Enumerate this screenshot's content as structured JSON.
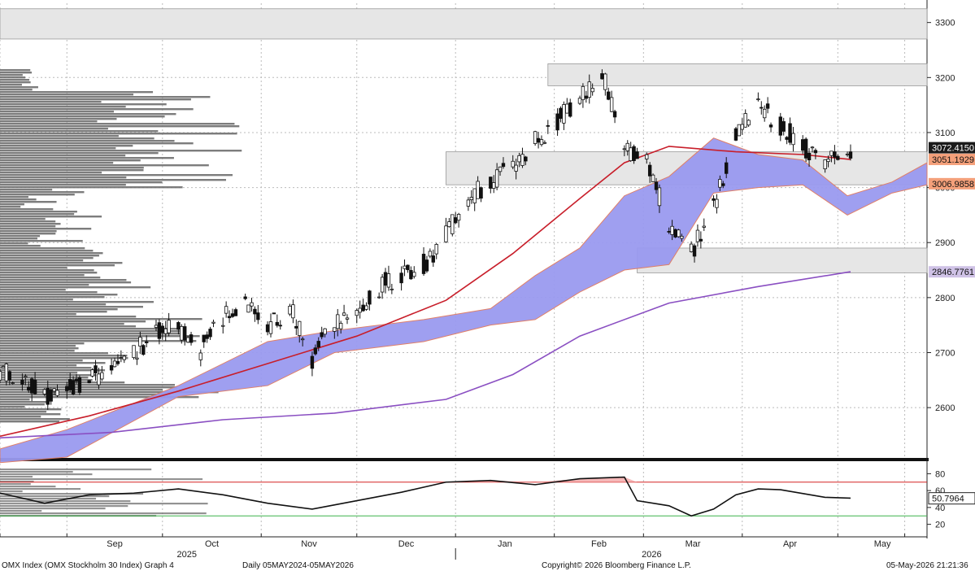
{
  "chart_data": {
    "type": "candlestick",
    "price_axis": {
      "ticks": [
        2600,
        2700,
        2800,
        2900,
        3000,
        3100,
        3200,
        3300
      ],
      "range": [
        2510,
        3335
      ]
    },
    "rsi_axis": {
      "ticks": [
        20,
        40,
        60,
        80
      ],
      "range": [
        10,
        90
      ],
      "upper_line": 70,
      "lower_line": 30
    },
    "dates": {
      "start": "2025-08-11",
      "end": "2026-05-29",
      "last_bar": "2026-05-05"
    },
    "month_labels": [
      "Sep",
      "Oct",
      "Nov",
      "Dec",
      "Jan",
      "Feb",
      "Mar",
      "Apr",
      "May"
    ],
    "year_labels": [
      "2025",
      "2026"
    ],
    "price_tags": [
      {
        "value": "3072.4150",
        "level": 3072.4,
        "bg": "#1a1a1a",
        "fg": "#ffffff"
      },
      {
        "value": "3051.1929",
        "level": 3051.2,
        "bg": "#f4a07a",
        "fg": "#111111"
      },
      {
        "value": "3006.9858",
        "level": 3007.0,
        "bg": "#f4a07a",
        "fg": "#111111"
      },
      {
        "value": "2846.7761",
        "level": 2846.8,
        "bg": "#cfc2e6",
        "fg": "#111111"
      }
    ],
    "rsi_tag": {
      "value": "50.7964",
      "level": 50.8
    },
    "resistance_zones": [
      {
        "from": 3270,
        "to": 3325,
        "start": "left"
      },
      {
        "from": 3185,
        "to": 3225,
        "start": "2026-01-30"
      },
      {
        "from": 3005,
        "to": 3065,
        "start": "2025-12-29"
      },
      {
        "from": 2845,
        "to": 2890,
        "start": "2026-02-27"
      }
    ],
    "close_path": [
      [
        "2025-08-11",
        2670
      ],
      [
        "2025-08-18",
        2660
      ],
      [
        "2025-08-25",
        2615
      ],
      [
        "2025-09-01",
        2630
      ],
      [
        "2025-09-08",
        2650
      ],
      [
        "2025-09-15",
        2672
      ],
      [
        "2025-09-22",
        2700
      ],
      [
        "2025-09-29",
        2735
      ],
      [
        "2025-10-06",
        2745
      ],
      [
        "2025-10-13",
        2705
      ],
      [
        "2025-10-20",
        2765
      ],
      [
        "2025-10-27",
        2795
      ],
      [
        "2025-11-03",
        2745
      ],
      [
        "2025-11-10",
        2785
      ],
      [
        "2025-11-17",
        2690
      ],
      [
        "2025-11-24",
        2755
      ],
      [
        "2025-12-01",
        2770
      ],
      [
        "2025-12-08",
        2820
      ],
      [
        "2025-12-15",
        2845
      ],
      [
        "2025-12-22",
        2860
      ],
      [
        "2025-12-29",
        2915
      ],
      [
        "2026-01-05",
        2980
      ],
      [
        "2026-01-12",
        3010
      ],
      [
        "2026-01-19",
        3040
      ],
      [
        "2026-01-26",
        3085
      ],
      [
        "2026-02-02",
        3120
      ],
      [
        "2026-02-09",
        3160
      ],
      [
        "2026-02-16",
        3205
      ],
      [
        "2026-02-23",
        3080
      ],
      [
        "2026-03-02",
        3040
      ],
      [
        "2026-03-09",
        2935
      ],
      [
        "2026-03-16",
        2880
      ],
      [
        "2026-03-23",
        2960
      ],
      [
        "2026-03-30",
        3105
      ],
      [
        "2026-04-06",
        3150
      ],
      [
        "2026-04-13",
        3115
      ],
      [
        "2026-04-20",
        3075
      ],
      [
        "2026-04-27",
        3040
      ],
      [
        "2026-05-05",
        3072
      ]
    ],
    "ma_red": [
      [
        "2025-08-11",
        2548
      ],
      [
        "2025-09-08",
        2585
      ],
      [
        "2025-10-06",
        2630
      ],
      [
        "2025-11-03",
        2680
      ],
      [
        "2025-12-01",
        2730
      ],
      [
        "2025-12-29",
        2795
      ],
      [
        "2026-01-19",
        2880
      ],
      [
        "2026-02-09",
        2980
      ],
      [
        "2026-02-23",
        3045
      ],
      [
        "2026-03-09",
        3075
      ],
      [
        "2026-03-30",
        3065
      ],
      [
        "2026-04-20",
        3060
      ],
      [
        "2026-05-05",
        3051
      ]
    ],
    "ma_purple": [
      [
        "2025-08-11",
        2545
      ],
      [
        "2025-09-15",
        2555
      ],
      [
        "2025-10-20",
        2578
      ],
      [
        "2025-11-24",
        2590
      ],
      [
        "2025-12-29",
        2615
      ],
      [
        "2026-01-19",
        2660
      ],
      [
        "2026-02-09",
        2730
      ],
      [
        "2026-03-09",
        2790
      ],
      [
        "2026-04-06",
        2820
      ],
      [
        "2026-05-05",
        2847
      ]
    ],
    "cloud_a": [
      [
        "2025-08-11",
        2525
      ],
      [
        "2025-09-01",
        2560
      ],
      [
        "2025-10-06",
        2640
      ],
      [
        "2025-11-03",
        2720
      ],
      [
        "2025-11-24",
        2740
      ],
      [
        "2025-12-22",
        2760
      ],
      [
        "2026-01-12",
        2780
      ],
      [
        "2026-01-26",
        2840
      ],
      [
        "2026-02-09",
        2890
      ],
      [
        "2026-02-23",
        2985
      ],
      [
        "2026-03-09",
        3020
      ],
      [
        "2026-03-23",
        3090
      ],
      [
        "2026-04-06",
        3060
      ],
      [
        "2026-04-20",
        3050
      ],
      [
        "2026-05-04",
        2985
      ],
      [
        "2026-05-18",
        3010
      ],
      [
        "2026-05-29",
        3045
      ]
    ],
    "cloud_b": [
      [
        "2025-08-11",
        2500
      ],
      [
        "2025-09-01",
        2510
      ],
      [
        "2025-10-06",
        2620
      ],
      [
        "2025-11-03",
        2640
      ],
      [
        "2025-11-24",
        2700
      ],
      [
        "2025-12-22",
        2720
      ],
      [
        "2026-01-12",
        2750
      ],
      [
        "2026-01-26",
        2760
      ],
      [
        "2026-02-09",
        2810
      ],
      [
        "2026-02-23",
        2850
      ],
      [
        "2026-03-09",
        2860
      ],
      [
        "2026-03-23",
        2990
      ],
      [
        "2026-04-06",
        3000
      ],
      [
        "2026-04-20",
        3005
      ],
      [
        "2026-05-04",
        2950
      ],
      [
        "2026-05-18",
        2990
      ],
      [
        "2026-05-29",
        3005
      ]
    ],
    "rsi": [
      [
        "2025-08-11",
        57
      ],
      [
        "2025-08-25",
        45
      ],
      [
        "2025-09-08",
        55
      ],
      [
        "2025-09-22",
        57
      ],
      [
        "2025-10-06",
        62
      ],
      [
        "2025-10-20",
        55
      ],
      [
        "2025-11-03",
        45
      ],
      [
        "2025-11-17",
        38
      ],
      [
        "2025-12-01",
        48
      ],
      [
        "2025-12-15",
        58
      ],
      [
        "2025-12-29",
        70
      ],
      [
        "2026-01-12",
        72
      ],
      [
        "2026-01-26",
        67
      ],
      [
        "2026-02-09",
        74
      ],
      [
        "2026-02-23",
        76
      ],
      [
        "2026-02-27",
        48
      ],
      [
        "2026-03-09",
        42
      ],
      [
        "2026-03-16",
        30
      ],
      [
        "2026-03-23",
        38
      ],
      [
        "2026-03-30",
        55
      ],
      [
        "2026-04-06",
        62
      ],
      [
        "2026-04-13",
        61
      ],
      [
        "2026-04-27",
        52
      ],
      [
        "2026-05-05",
        51
      ]
    ],
    "volume_profile": "horizontal histogram bars on the left edge (shape only, no values printed)"
  },
  "footer": {
    "security": "OMX Index (OMX Stockholm 30 Index) Graph 4",
    "period": "Daily 05MAY2024-05MAY2026",
    "copyright": "Copyright© 2026 Bloomberg Finance L.P.",
    "timestamp": "05-May-2026 21:21:36"
  },
  "colors": {
    "background": "#ffffff",
    "cloud": "#9a9af0",
    "cloud_edge": "#e07a60",
    "ma_red": "#c81e2a",
    "ma_purple": "#8a4fc2",
    "zone": "#e6e6e6",
    "rsi_upper": "#d62222",
    "rsi_lower": "#3cb34a",
    "profile": "#6f6f6f"
  }
}
